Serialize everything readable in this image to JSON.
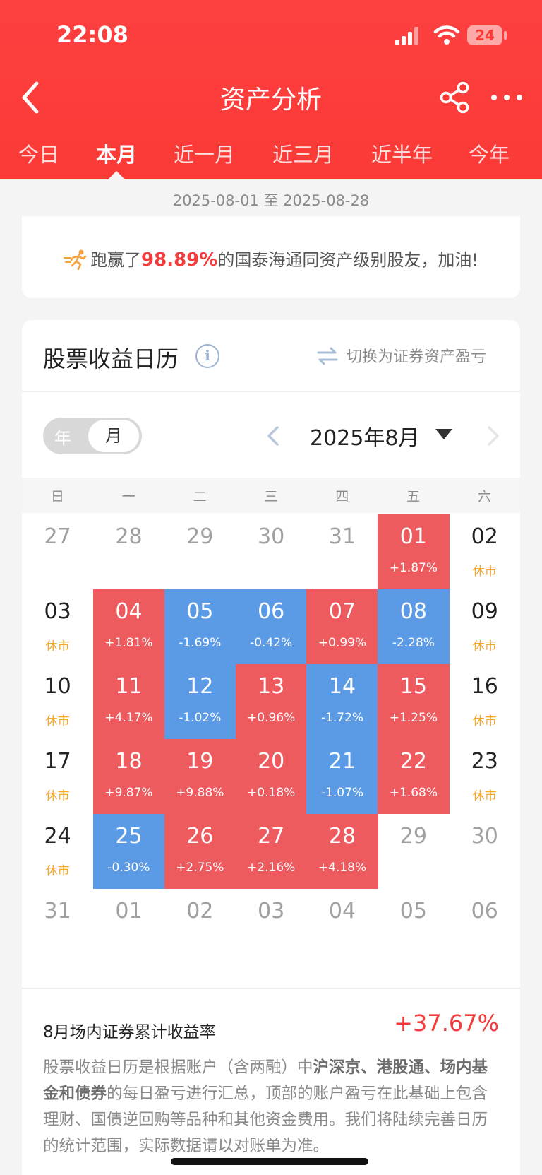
{
  "status": {
    "time": "22:08",
    "battery": "24"
  },
  "nav": {
    "title": "资产分析"
  },
  "tabs": [
    {
      "label": "今日",
      "active": false
    },
    {
      "label": "本月",
      "active": true
    },
    {
      "label": "近一月",
      "active": false
    },
    {
      "label": "近三月",
      "active": false
    },
    {
      "label": "近半年",
      "active": false
    },
    {
      "label": "今年",
      "active": false
    }
  ],
  "date_range": "2025-08-01 至 2025-08-28",
  "rank": {
    "prefix": "跑赢了",
    "percent": "98.89%",
    "suffix": "的国泰海通同资产级别股友，加油!"
  },
  "calendar": {
    "title": "股票收益日历",
    "switch_label": "切换为证券资产盈亏",
    "seg_year": "年",
    "seg_month": "月",
    "month_label": "2025年8月",
    "weekdays": [
      "日",
      "一",
      "二",
      "三",
      "四",
      "五",
      "六"
    ],
    "days": [
      {
        "d": "27",
        "s": "",
        "t": "out"
      },
      {
        "d": "28",
        "s": "",
        "t": "out"
      },
      {
        "d": "29",
        "s": "",
        "t": "out"
      },
      {
        "d": "30",
        "s": "",
        "t": "out"
      },
      {
        "d": "31",
        "s": "",
        "t": "out"
      },
      {
        "d": "01",
        "s": "+1.87%",
        "t": "up"
      },
      {
        "d": "02",
        "s": "休市",
        "t": "closed"
      },
      {
        "d": "03",
        "s": "休市",
        "t": "closed"
      },
      {
        "d": "04",
        "s": "+1.81%",
        "t": "up"
      },
      {
        "d": "05",
        "s": "-1.69%",
        "t": "down"
      },
      {
        "d": "06",
        "s": "-0.42%",
        "t": "down"
      },
      {
        "d": "07",
        "s": "+0.99%",
        "t": "up"
      },
      {
        "d": "08",
        "s": "-2.28%",
        "t": "down"
      },
      {
        "d": "09",
        "s": "休市",
        "t": "closed"
      },
      {
        "d": "10",
        "s": "休市",
        "t": "closed"
      },
      {
        "d": "11",
        "s": "+4.17%",
        "t": "up"
      },
      {
        "d": "12",
        "s": "-1.02%",
        "t": "down"
      },
      {
        "d": "13",
        "s": "+0.96%",
        "t": "up"
      },
      {
        "d": "14",
        "s": "-1.72%",
        "t": "down"
      },
      {
        "d": "15",
        "s": "+1.25%",
        "t": "up"
      },
      {
        "d": "16",
        "s": "休市",
        "t": "closed"
      },
      {
        "d": "17",
        "s": "休市",
        "t": "closed"
      },
      {
        "d": "18",
        "s": "+9.87%",
        "t": "up"
      },
      {
        "d": "19",
        "s": "+9.88%",
        "t": "up"
      },
      {
        "d": "20",
        "s": "+0.18%",
        "t": "up"
      },
      {
        "d": "21",
        "s": "-1.07%",
        "t": "down"
      },
      {
        "d": "22",
        "s": "+1.68%",
        "t": "up"
      },
      {
        "d": "23",
        "s": "休市",
        "t": "closed"
      },
      {
        "d": "24",
        "s": "休市",
        "t": "closed"
      },
      {
        "d": "25",
        "s": "-0.30%",
        "t": "down"
      },
      {
        "d": "26",
        "s": "+2.75%",
        "t": "up"
      },
      {
        "d": "27",
        "s": "+2.16%",
        "t": "up"
      },
      {
        "d": "28",
        "s": "+4.18%",
        "t": "up"
      },
      {
        "d": "29",
        "s": "",
        "t": "out"
      },
      {
        "d": "30",
        "s": "",
        "t": "out"
      },
      {
        "d": "31",
        "s": "",
        "t": "out"
      },
      {
        "d": "01",
        "s": "",
        "t": "out"
      },
      {
        "d": "02",
        "s": "",
        "t": "out"
      },
      {
        "d": "03",
        "s": "",
        "t": "out"
      },
      {
        "d": "04",
        "s": "",
        "t": "out"
      },
      {
        "d": "05",
        "s": "",
        "t": "out"
      },
      {
        "d": "06",
        "s": "",
        "t": "out"
      }
    ]
  },
  "cumulative": {
    "label": "8月场内证券累计收益率",
    "value": "+37.67%"
  },
  "notes": [
    {
      "text": "股票收益日历是根据账户（含两融）中",
      "bold": false
    },
    {
      "text": "沪深京、港股通、场内基金和债券",
      "bold": true
    },
    {
      "text": "的每日盈亏进行汇总，顶部的账户盈亏在此基础上包含理财、国债逆回购等品种和其他资金费用。我们将陆续完善日历的统计范围，实际数据请以对账单为准。",
      "bold": false
    }
  ],
  "colors": {
    "header": "#fb3a36",
    "up": "#ee5b5f",
    "down": "#5b9be6",
    "closed": "#f5a623",
    "accent": "#f23c3c"
  }
}
